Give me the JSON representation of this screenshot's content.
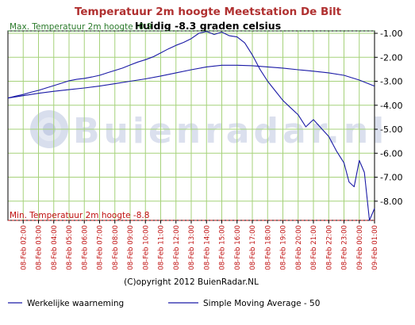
{
  "chart_data": {
    "type": "line",
    "title": "Temperatuur 2m hoogte Meetstation De Bilt",
    "subtitle": "Huidig -8.3 graden celsius",
    "max_label": "Max. Temperatuur 2m hoogte -0.9",
    "min_label": "Min. Temperatuur 2m hoogte -8.8",
    "max_value": -0.9,
    "min_value": -8.8,
    "ylim": [
      -8.8,
      -0.9
    ],
    "yticks": [
      -1,
      -2,
      -3,
      -4,
      -5,
      -6,
      -7,
      -8
    ],
    "ytick_labels": [
      "-1.00",
      "-2.00",
      "-3.00",
      "-4.00",
      "-5.00",
      "-6.00",
      "-7.00",
      "-8.00"
    ],
    "x_start": "08-Feb 01:00",
    "x_end": "09-Feb 01:00",
    "x_tick_labels": [
      "08-Feb 02:00",
      "08-Feb 03:00",
      "08-Feb 04:00",
      "08-Feb 05:00",
      "08-Feb 06:00",
      "08-Feb 07:00",
      "08-Feb 08:00",
      "08-Feb 09:00",
      "08-Feb 10:00",
      "08-Feb 11:00",
      "08-Feb 12:00",
      "08-Feb 13:00",
      "08-Feb 14:00",
      "08-Feb 15:00",
      "08-Feb 16:00",
      "08-Feb 17:00",
      "08-Feb 18:00",
      "08-Feb 19:00",
      "08-Feb 20:00",
      "08-Feb 21:00",
      "08-Feb 22:00",
      "08-Feb 23:00",
      "09-Feb 00:00",
      "09-Feb 01:00"
    ],
    "grid": true,
    "legend_position": "bottom",
    "series": [
      {
        "name": "Werkelijke waarneming",
        "color": "#1a1aa6",
        "points": [
          [
            "08-Feb 01:00",
            -3.7
          ],
          [
            "08-Feb 01:30",
            -3.62
          ],
          [
            "08-Feb 02:00",
            -3.55
          ],
          [
            "08-Feb 02:30",
            -3.46
          ],
          [
            "08-Feb 03:00",
            -3.38
          ],
          [
            "08-Feb 03:30",
            -3.28
          ],
          [
            "08-Feb 04:00",
            -3.18
          ],
          [
            "08-Feb 04:30",
            -3.08
          ],
          [
            "08-Feb 05:00",
            -2.98
          ],
          [
            "08-Feb 05:30",
            -2.92
          ],
          [
            "08-Feb 06:00",
            -2.88
          ],
          [
            "08-Feb 06:30",
            -2.82
          ],
          [
            "08-Feb 07:00",
            -2.75
          ],
          [
            "08-Feb 07:30",
            -2.65
          ],
          [
            "08-Feb 08:00",
            -2.55
          ],
          [
            "08-Feb 08:30",
            -2.45
          ],
          [
            "08-Feb 09:00",
            -2.32
          ],
          [
            "08-Feb 09:30",
            -2.2
          ],
          [
            "08-Feb 10:00",
            -2.1
          ],
          [
            "08-Feb 10:30",
            -1.98
          ],
          [
            "08-Feb 11:00",
            -1.82
          ],
          [
            "08-Feb 11:30",
            -1.65
          ],
          [
            "08-Feb 12:00",
            -1.5
          ],
          [
            "08-Feb 12:30",
            -1.38
          ],
          [
            "08-Feb 13:00",
            -1.22
          ],
          [
            "08-Feb 13:30",
            -1.0
          ],
          [
            "08-Feb 14:00",
            -0.92
          ],
          [
            "08-Feb 14:30",
            -1.05
          ],
          [
            "08-Feb 15:00",
            -0.95
          ],
          [
            "08-Feb 15:30",
            -1.1
          ],
          [
            "08-Feb 16:00",
            -1.15
          ],
          [
            "08-Feb 16:30",
            -1.4
          ],
          [
            "08-Feb 17:00",
            -1.9
          ],
          [
            "08-Feb 17:30",
            -2.5
          ],
          [
            "08-Feb 18:00",
            -3.0
          ],
          [
            "08-Feb 18:30",
            -3.4
          ],
          [
            "08-Feb 19:00",
            -3.8
          ],
          [
            "08-Feb 19:30",
            -4.1
          ],
          [
            "08-Feb 20:00",
            -4.4
          ],
          [
            "08-Feb 20:30",
            -4.9
          ],
          [
            "08-Feb 21:00",
            -4.6
          ],
          [
            "08-Feb 21:30",
            -4.95
          ],
          [
            "08-Feb 22:00",
            -5.3
          ],
          [
            "08-Feb 22:30",
            -5.9
          ],
          [
            "08-Feb 23:00",
            -6.4
          ],
          [
            "08-Feb 23:20",
            -7.2
          ],
          [
            "08-Feb 23:40",
            -7.4
          ],
          [
            "09-Feb 00:00",
            -6.3
          ],
          [
            "09-Feb 00:20",
            -6.8
          ],
          [
            "09-Feb 00:40",
            -8.8
          ],
          [
            "09-Feb 01:00",
            -8.3
          ]
        ]
      },
      {
        "name": "Simple Moving Average - 50",
        "color": "#1a1aa6",
        "points": [
          [
            "08-Feb 01:00",
            -3.7
          ],
          [
            "08-Feb 02:00",
            -3.6
          ],
          [
            "08-Feb 03:00",
            -3.5
          ],
          [
            "08-Feb 04:00",
            -3.42
          ],
          [
            "08-Feb 05:00",
            -3.35
          ],
          [
            "08-Feb 06:00",
            -3.28
          ],
          [
            "08-Feb 07:00",
            -3.2
          ],
          [
            "08-Feb 08:00",
            -3.1
          ],
          [
            "08-Feb 09:00",
            -3.0
          ],
          [
            "08-Feb 10:00",
            -2.9
          ],
          [
            "08-Feb 11:00",
            -2.78
          ],
          [
            "08-Feb 12:00",
            -2.65
          ],
          [
            "08-Feb 13:00",
            -2.52
          ],
          [
            "08-Feb 14:00",
            -2.4
          ],
          [
            "08-Feb 15:00",
            -2.33
          ],
          [
            "08-Feb 16:00",
            -2.33
          ],
          [
            "08-Feb 17:00",
            -2.35
          ],
          [
            "08-Feb 18:00",
            -2.4
          ],
          [
            "08-Feb 19:00",
            -2.45
          ],
          [
            "08-Feb 20:00",
            -2.52
          ],
          [
            "08-Feb 21:00",
            -2.58
          ],
          [
            "08-Feb 22:00",
            -2.65
          ],
          [
            "08-Feb 23:00",
            -2.75
          ],
          [
            "09-Feb 00:00",
            -2.95
          ],
          [
            "09-Feb 01:00",
            -3.2
          ]
        ]
      }
    ]
  },
  "watermark": "Buienradar.nl",
  "copyright": "(C)opyright 2012 BuienRadar.NL",
  "colors": {
    "title": "#b03030",
    "grid": "#a6d27a",
    "line": "#1a1aa6",
    "max_line": "#2a7a2a",
    "min_line": "#c01010"
  }
}
